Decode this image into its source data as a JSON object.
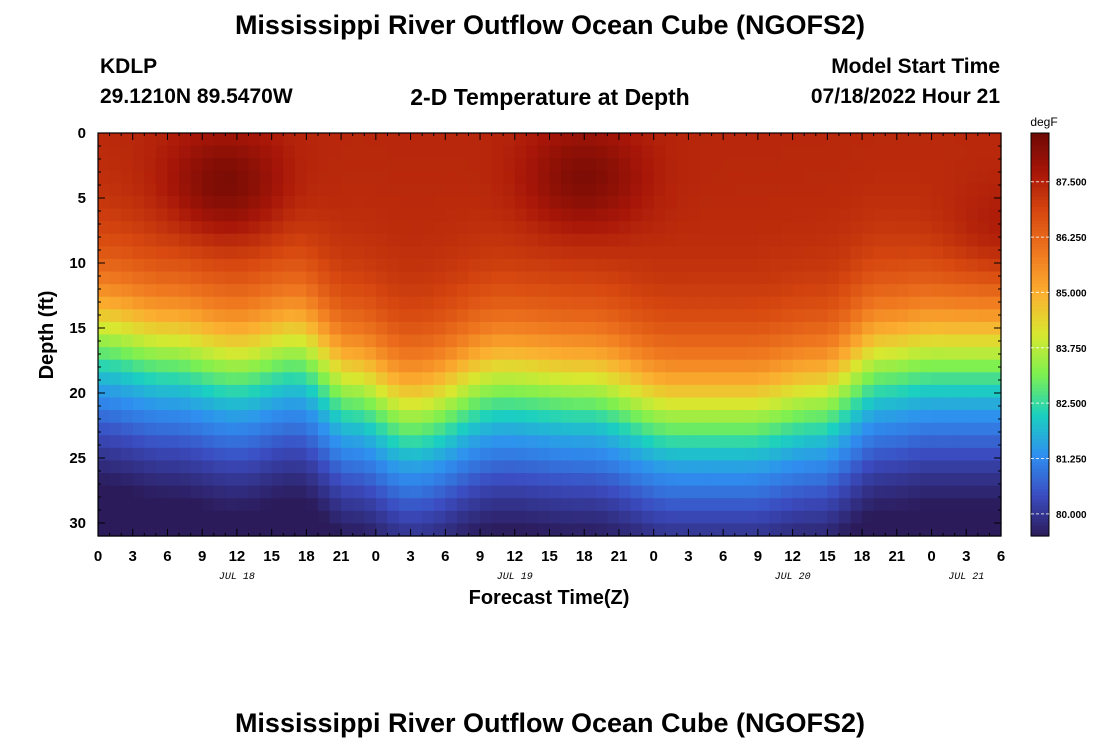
{
  "header": {
    "title": "Mississippi River Outflow Ocean Cube (NGOFS2)",
    "station": "KDLP",
    "coords": "29.1210N  89.5470W",
    "subtitle": "2-D Temperature at Depth",
    "model_start_label": "Model Start Time",
    "model_start_value": "07/18/2022 Hour 21"
  },
  "footer": {
    "title": "Mississippi River Outflow Ocean Cube (NGOFS2)"
  },
  "chart_data": {
    "type": "heatmap",
    "title": "2-D Temperature at Depth",
    "xlabel": "Forecast Time(Z)",
    "ylabel": "Depth (ft)",
    "units": "degF",
    "x_tick_labels": [
      "0",
      "3",
      "6",
      "9",
      "12",
      "15",
      "18",
      "21",
      "0",
      "3",
      "6",
      "9",
      "12",
      "15",
      "18",
      "21",
      "0",
      "3",
      "6",
      "9",
      "12",
      "15",
      "18",
      "21",
      "0",
      "3",
      "6"
    ],
    "date_labels": [
      {
        "label": "JUL 18",
        "hour": 12
      },
      {
        "label": "JUL 19",
        "hour": 36
      },
      {
        "label": "JUL 20",
        "hour": 60
      },
      {
        "label": "JUL 21",
        "hour": 75
      }
    ],
    "x_range_hours": [
      0,
      78
    ],
    "y_ticks": [
      0,
      5,
      10,
      15,
      20,
      25,
      30
    ],
    "y_range_ft": [
      0,
      31
    ],
    "colorbar": {
      "ticks": [
        80.0,
        81.25,
        82.5,
        83.75,
        85.0,
        86.25,
        87.5
      ],
      "tick_labels": [
        "80.000",
        "81.250",
        "82.500",
        "83.750",
        "85.000",
        "86.250",
        "87.500"
      ],
      "range": [
        79.5,
        88.6
      ],
      "colors": [
        "#2b1b5a",
        "#3b4cc0",
        "#2f8ff0",
        "#1bd0c0",
        "#7cf050",
        "#d8e830",
        "#fbb030",
        "#f07a20",
        "#d84a10",
        "#a81608",
        "#6e0a04"
      ]
    },
    "thermocline_depth_ft": [
      {
        "hour": 0,
        "depth": 15.5
      },
      {
        "hour": 6,
        "depth": 16.5
      },
      {
        "hour": 12,
        "depth": 17.5
      },
      {
        "hour": 17,
        "depth": 16.5
      },
      {
        "hour": 22,
        "depth": 19.5
      },
      {
        "hour": 27,
        "depth": 21.5
      },
      {
        "hour": 35,
        "depth": 19.0
      },
      {
        "hour": 42,
        "depth": 19.5
      },
      {
        "hour": 50,
        "depth": 21.5
      },
      {
        "hour": 56,
        "depth": 21.5
      },
      {
        "hour": 62,
        "depth": 20.5
      },
      {
        "hour": 68,
        "depth": 17.5
      },
      {
        "hour": 72,
        "depth": 17.0
      },
      {
        "hour": 78,
        "depth": 17.0
      }
    ],
    "warm_cores": [
      {
        "hour": 11,
        "depth": 4,
        "value": 88.5
      },
      {
        "hour": 42,
        "depth": 3.5,
        "value": 88.4
      },
      {
        "hour": 78,
        "depth": 8,
        "value": 87.9
      }
    ],
    "surface_temp_degF": 87.4,
    "bottom_temp_degF": 80.0
  }
}
